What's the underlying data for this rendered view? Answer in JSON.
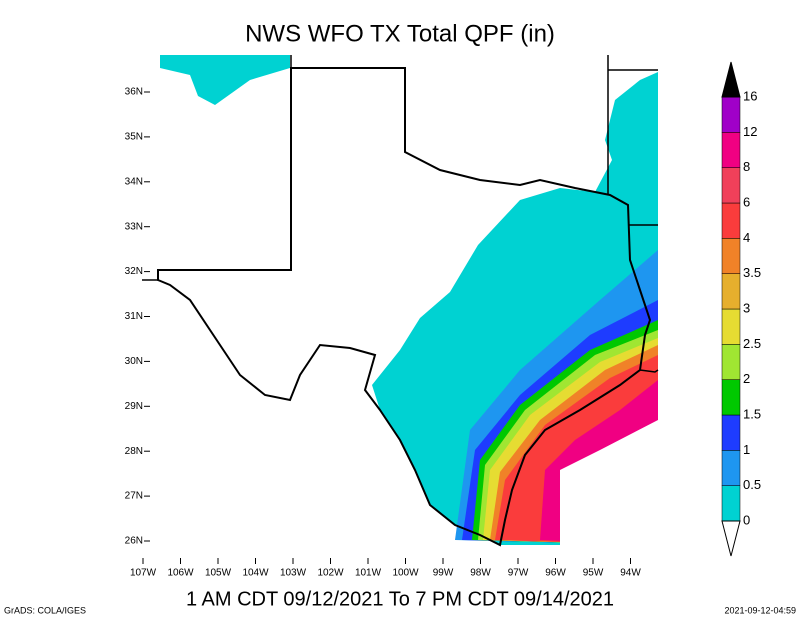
{
  "title": "NWS WFO TX Total QPF (in)",
  "map": {
    "lat_labels": [
      "36N",
      "35N",
      "34N",
      "33N",
      "32N",
      "31N",
      "30N",
      "29N",
      "28N",
      "27N",
      "26N"
    ],
    "lon_labels": [
      "107W",
      "106W",
      "105W",
      "104W",
      "103W",
      "102W",
      "101W",
      "100W",
      "99W",
      "98W",
      "97W",
      "96W",
      "95W",
      "94W"
    ]
  },
  "colorbar": {
    "levels": [
      0,
      0.5,
      1,
      1.5,
      2,
      2.5,
      3,
      3.5,
      4,
      6,
      8,
      12,
      16
    ],
    "colors": [
      "#00d2d2",
      "#1e96f0",
      "#1e3cff",
      "#00c800",
      "#a0e632",
      "#e6dc32",
      "#e6af2d",
      "#f08228",
      "#fa3c3c",
      "#f0405a",
      "#f00082",
      "#a000c8"
    ]
  },
  "subtitle": "1 AM CDT 09/12/2021 To 7 PM CDT 09/14/2021",
  "footer": {
    "software": "GrADS: COLA/IGES",
    "timestamp": "2021-09-12-04:59"
  }
}
